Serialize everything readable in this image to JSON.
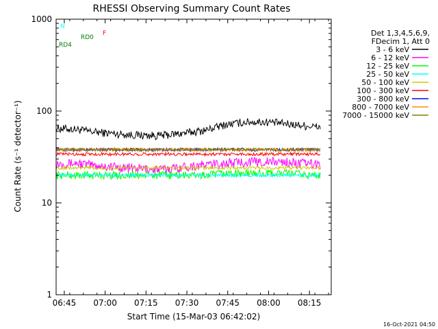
{
  "chart_data": {
    "type": "line",
    "title": "RHESSI Observing Summary Count Rates",
    "xlabel": "Start Time (15-Mar-03 06:42:02)",
    "ylabel": "Count Rate (s⁻¹ detector⁻¹)",
    "x_unit": "minutes after 06:42:02",
    "xlim": [
      0,
      101
    ],
    "ylim": [
      1,
      1000
    ],
    "y_scale": "log",
    "grid": false,
    "timestamp": "16-Oct-2021 04:50",
    "x_ticks": [
      {
        "label": "06:45",
        "x": 3
      },
      {
        "label": "07:00",
        "x": 18
      },
      {
        "label": "07:15",
        "x": 33
      },
      {
        "label": "07:30",
        "x": 48
      },
      {
        "label": "07:45",
        "x": 63
      },
      {
        "label": "08:00",
        "x": 78
      },
      {
        "label": "08:15",
        "x": 93
      }
    ],
    "y_ticks": [
      {
        "label": "1",
        "value": 1
      },
      {
        "label": "10",
        "value": 10
      },
      {
        "label": "100",
        "value": 100
      },
      {
        "label": "1000",
        "value": 1000
      }
    ],
    "legend_header": [
      "Det 1,3,4,5,6,9,",
      "FDecim 1, Att 0"
    ],
    "legend_position": "right",
    "series": [
      {
        "name": "3 - 6 keV",
        "color": "#000000",
        "noise": 0.1,
        "points": [
          [
            0,
            65
          ],
          [
            8,
            63
          ],
          [
            12,
            60
          ],
          [
            18,
            58
          ],
          [
            28,
            55
          ],
          [
            38,
            54
          ],
          [
            48,
            58
          ],
          [
            55,
            62
          ],
          [
            62,
            71
          ],
          [
            70,
            76
          ],
          [
            78,
            76
          ],
          [
            84,
            73
          ],
          [
            88,
            71
          ],
          [
            92,
            69
          ],
          [
            97,
            67
          ]
        ]
      },
      {
        "name": "6 - 12 keV",
        "color": "#ff00ff",
        "noise": 0.12,
        "points": [
          [
            0,
            27
          ],
          [
            8,
            27
          ],
          [
            12,
            26
          ],
          [
            18,
            25
          ],
          [
            28,
            24
          ],
          [
            38,
            23
          ],
          [
            48,
            25
          ],
          [
            55,
            26
          ],
          [
            62,
            27
          ],
          [
            70,
            28
          ],
          [
            78,
            28
          ],
          [
            84,
            28
          ],
          [
            88,
            27
          ],
          [
            92,
            27
          ],
          [
            97,
            26
          ]
        ]
      },
      {
        "name": "12 - 25 keV",
        "color": "#00ff00",
        "noise": 0.1,
        "points": [
          [
            0,
            20
          ],
          [
            8,
            20
          ],
          [
            12,
            20
          ],
          [
            18,
            20
          ],
          [
            28,
            20
          ],
          [
            38,
            20
          ],
          [
            48,
            20
          ],
          [
            55,
            20
          ],
          [
            62,
            21
          ],
          [
            70,
            21
          ],
          [
            78,
            21
          ],
          [
            84,
            21
          ],
          [
            88,
            21
          ],
          [
            92,
            20
          ],
          [
            97,
            20
          ]
        ]
      },
      {
        "name": "25 - 50 keV",
        "color": "#00ffff",
        "noise": 0.04,
        "points": [
          [
            0,
            20
          ],
          [
            8,
            20
          ],
          [
            12,
            20
          ],
          [
            18,
            20
          ],
          [
            28,
            20
          ],
          [
            38,
            20
          ],
          [
            48,
            20
          ],
          [
            55,
            20
          ],
          [
            62,
            20
          ],
          [
            70,
            20
          ],
          [
            78,
            20
          ],
          [
            84,
            20
          ],
          [
            88,
            20
          ],
          [
            92,
            20
          ],
          [
            97,
            20
          ]
        ]
      },
      {
        "name": "50 - 100 keV",
        "color": "#cccc00",
        "noise": 0.04,
        "points": [
          [
            0,
            24
          ],
          [
            8,
            24
          ],
          [
            12,
            24
          ],
          [
            18,
            24
          ],
          [
            28,
            24
          ],
          [
            38,
            24
          ],
          [
            48,
            24
          ],
          [
            55,
            24
          ],
          [
            62,
            24
          ],
          [
            70,
            24
          ],
          [
            78,
            24
          ],
          [
            84,
            24
          ],
          [
            88,
            24
          ],
          [
            92,
            24
          ],
          [
            97,
            24
          ]
        ]
      },
      {
        "name": "100 - 300 keV",
        "color": "#ff0000",
        "noise": 0.04,
        "points": [
          [
            0,
            34
          ],
          [
            8,
            34
          ],
          [
            12,
            34
          ],
          [
            18,
            34
          ],
          [
            28,
            34
          ],
          [
            38,
            34
          ],
          [
            48,
            34
          ],
          [
            55,
            34
          ],
          [
            62,
            34
          ],
          [
            70,
            34
          ],
          [
            78,
            34
          ],
          [
            84,
            34
          ],
          [
            88,
            34
          ],
          [
            92,
            34
          ],
          [
            97,
            34
          ]
        ]
      },
      {
        "name": "300 - 800 keV",
        "color": "#0000ff",
        "noise": 0.04,
        "points": [
          [
            0,
            38
          ],
          [
            8,
            38
          ],
          [
            12,
            38
          ],
          [
            18,
            38
          ],
          [
            28,
            38
          ],
          [
            38,
            38
          ],
          [
            48,
            38
          ],
          [
            55,
            38
          ],
          [
            62,
            38
          ],
          [
            70,
            38
          ],
          [
            78,
            38
          ],
          [
            84,
            38
          ],
          [
            88,
            38
          ],
          [
            92,
            38
          ],
          [
            97,
            38
          ]
        ]
      },
      {
        "name": "800 - 7000 keV",
        "color": "#ff8c00",
        "noise": 0.04,
        "points": [
          [
            0,
            38
          ],
          [
            8,
            38
          ],
          [
            12,
            38
          ],
          [
            18,
            38
          ],
          [
            28,
            38
          ],
          [
            38,
            38
          ],
          [
            48,
            38
          ],
          [
            55,
            38
          ],
          [
            62,
            38
          ],
          [
            70,
            38
          ],
          [
            78,
            38
          ],
          [
            84,
            38
          ],
          [
            88,
            38
          ],
          [
            92,
            38
          ],
          [
            97,
            38
          ]
        ]
      },
      {
        "name": "7000 - 15000 keV",
        "color": "#808000",
        "noise": 0.04,
        "points": [
          [
            0,
            38
          ],
          [
            8,
            38
          ],
          [
            12,
            38
          ],
          [
            18,
            38
          ],
          [
            28,
            38
          ],
          [
            38,
            38
          ],
          [
            48,
            38
          ],
          [
            55,
            38
          ],
          [
            62,
            38
          ],
          [
            70,
            38
          ],
          [
            78,
            38
          ],
          [
            84,
            38
          ],
          [
            88,
            38
          ],
          [
            92,
            38
          ],
          [
            97,
            38
          ]
        ]
      }
    ],
    "annotations": [
      {
        "label": "N",
        "color": "#00ffff"
      },
      {
        "label": "F",
        "color": "#ff0000"
      },
      {
        "label": "RD0",
        "color": "#008000"
      },
      {
        "label": "RD4",
        "color": "#008000"
      }
    ]
  }
}
